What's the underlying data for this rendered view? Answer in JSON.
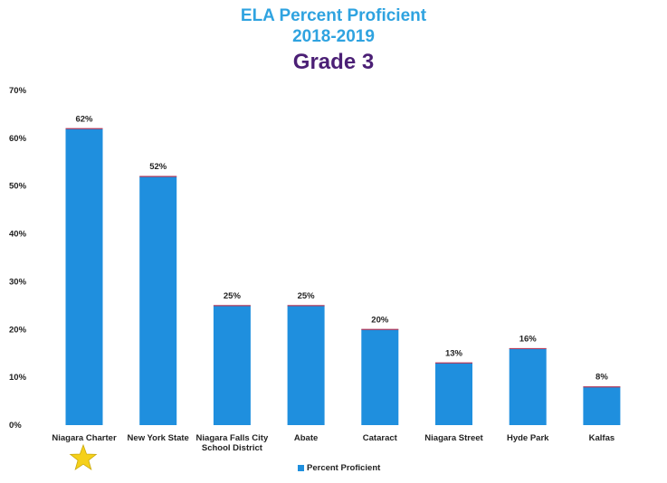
{
  "title": "ELA Percent Proficient",
  "subtitle": "2018-2019",
  "grade_label": "Grade 3",
  "legend_label": "Percent Proficient",
  "star_icon": "star-icon",
  "colors": {
    "bar": "#1f8fde",
    "bar_edge": "#b03a5b",
    "title": "#2fa3e0",
    "grade": "#4b1f75",
    "star": "#f5d01a"
  },
  "chart_data": {
    "type": "bar",
    "categories": [
      "Niagara Charter",
      "New York State",
      "Niagara Falls City School District",
      "Abate",
      "Cataract",
      "Niagara Street",
      "Hyde Park",
      "Kalfas"
    ],
    "category_lines": [
      [
        "Niagara Charter"
      ],
      [
        "New York State"
      ],
      [
        "Niagara Falls City",
        "School District"
      ],
      [
        "Abate"
      ],
      [
        "Cataract"
      ],
      [
        "Niagara Street"
      ],
      [
        "Hyde Park"
      ],
      [
        "Kalfas"
      ]
    ],
    "series": [
      {
        "name": "Percent Proficient",
        "values": [
          62,
          52,
          25,
          25,
          20,
          13,
          16,
          8
        ]
      }
    ],
    "data_labels": [
      "62%",
      "52%",
      "25%",
      "25%",
      "20%",
      "13%",
      "16%",
      "8%"
    ],
    "yticks": [
      "0%",
      "10%",
      "20%",
      "30%",
      "40%",
      "50%",
      "60%",
      "70%"
    ],
    "ylim": [
      0,
      70
    ],
    "grid": false,
    "legend_position": "bottom"
  }
}
